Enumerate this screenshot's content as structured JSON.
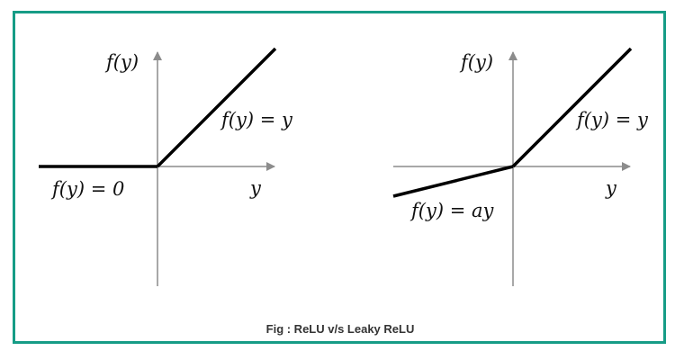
{
  "figure": {
    "caption": "Fig : ReLU v/s Leaky ReLU",
    "border_color": "#169c86",
    "panels": [
      {
        "name": "relu",
        "y_axis_label": "f(y)",
        "x_axis_label": "y",
        "positive_label": "f(y) = y",
        "negative_label": "f(y) = 0"
      },
      {
        "name": "leaky-relu",
        "y_axis_label": "f(y)",
        "x_axis_label": "y",
        "positive_label": "f(y) = y",
        "negative_label": "f(y) = ay"
      }
    ]
  }
}
